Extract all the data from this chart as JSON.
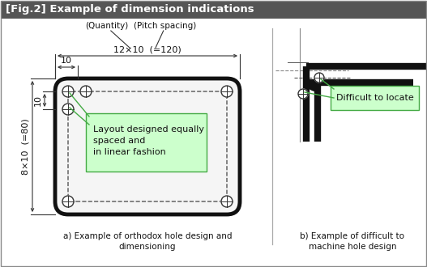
{
  "title": "[Fig.2] Example of dimension indications",
  "title_bg": "#555555",
  "title_color": "#ffffff",
  "bg_color": "#ffffff",
  "label_a": "a) Example of orthodox hole design and\ndimensioning",
  "label_b": "b) Example of difficult to\nmachine hole design",
  "annotation_a": "Layout designed equally\nspaced and\nin linear fashion",
  "annotation_b": "Difficult to locate",
  "annotation_bg": "#ccffcc",
  "annotation_border": "#44aa44",
  "dim_label_1": "12×10  (=120)",
  "dim_label_2": "10",
  "dim_label_3": "8×10  (=80)",
  "dim_label_4": "10",
  "qty_label": "(Quantity)",
  "pitch_label": "(Pitch spacing)"
}
